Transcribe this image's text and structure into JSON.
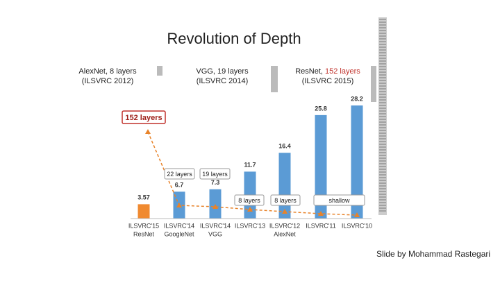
{
  "chart_data": {
    "type": "bar",
    "title": "Revolution of Depth",
    "headers": [
      {
        "name": "AlexNet, 8 layers",
        "note": "(ILSVRC 2012)"
      },
      {
        "name": "VGG, 19 layers",
        "note": "(ILSVRC 2014)"
      },
      {
        "name": "ResNet, ",
        "highlight": "152 layers",
        "note": "(ILSVRC 2015)"
      }
    ],
    "categories": [
      "ILSVRC'15",
      "ILSVRC'14",
      "ILSVRC'14",
      "ILSVRC'13",
      "ILSVRC'12",
      "ILSVRC'11",
      "ILSVRC'10"
    ],
    "models": [
      "ResNet",
      "GoogleNet",
      "VGG",
      null,
      "AlexNet",
      null,
      null
    ],
    "values": [
      3.57,
      6.7,
      7.3,
      11.7,
      16.4,
      25.8,
      28.2
    ],
    "colors": [
      "#f08a30",
      "#5b9bd5",
      "#5b9bd5",
      "#5b9bd5",
      "#5b9bd5",
      "#5b9bd5",
      "#5b9bd5"
    ],
    "layers": [
      "152 layers",
      "22 layers",
      "19 layers",
      "8 layers",
      "8 layers",
      "shallow"
    ],
    "credit": "Slide by Mohammad Rastegari"
  }
}
